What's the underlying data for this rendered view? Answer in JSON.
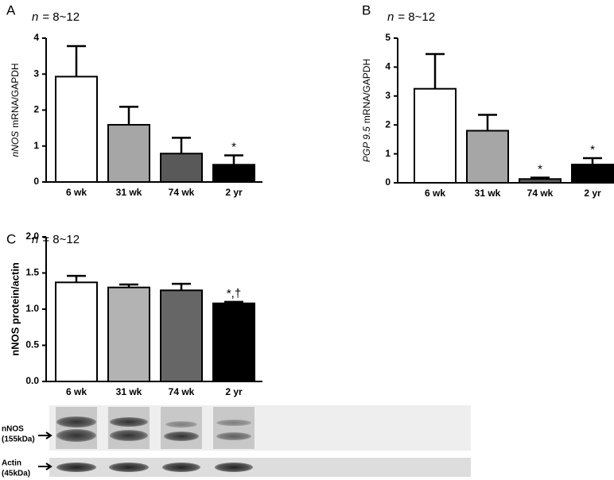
{
  "chart_data": [
    {
      "type": "bar",
      "panel": "A",
      "title_italic": "n",
      "title_rest": "= 8~12",
      "ylabel_italic": "nNOS",
      "ylabel_rest": "mRNA/GAPDH",
      "categories": [
        "6 wk",
        "31 wk",
        "74 wk",
        "2 yr"
      ],
      "values": [
        2.93,
        1.59,
        0.79,
        0.48
      ],
      "errors": [
        0.85,
        0.5,
        0.44,
        0.26
      ],
      "colors": [
        "#ffffff",
        "#a6a6a6",
        "#595959",
        "#000000"
      ],
      "ylim": [
        0,
        4
      ],
      "yticks": [
        0,
        1,
        2,
        3,
        4
      ],
      "annotations": [
        {
          "category": "2 yr",
          "text": "*"
        }
      ]
    },
    {
      "type": "bar",
      "panel": "B",
      "title_italic": "n",
      "title_rest": "= 8~12",
      "ylabel_italic": "PGP 9.5",
      "ylabel_rest": "mRNA/GAPDH",
      "categories": [
        "6 wk",
        "31 wk",
        "74 wk",
        "2 yr"
      ],
      "values": [
        3.25,
        1.8,
        0.13,
        0.63
      ],
      "errors": [
        1.2,
        0.55,
        0.05,
        0.22
      ],
      "colors": [
        "#ffffff",
        "#a6a6a6",
        "#595959",
        "#000000"
      ],
      "ylim": [
        0,
        5
      ],
      "yticks": [
        0,
        1,
        2,
        3,
        4,
        5
      ],
      "annotations": [
        {
          "category": "74 wk",
          "text": "*"
        },
        {
          "category": "2 yr",
          "text": "*"
        }
      ]
    },
    {
      "type": "bar",
      "panel": "C",
      "title_italic": "n",
      "title_rest": "= 8~12",
      "ylabel": "nNOS protein/actin",
      "categories": [
        "6 wk",
        "31 wk",
        "74 wk",
        "2 yr"
      ],
      "values": [
        1.37,
        1.3,
        1.26,
        1.08
      ],
      "errors": [
        0.09,
        0.04,
        0.09,
        0.02
      ],
      "colors": [
        "#ffffff",
        "#b3b3b3",
        "#666666",
        "#000000"
      ],
      "ylim": [
        0,
        2
      ],
      "yticks": [
        {
          "value": 0,
          "label": "0.0"
        },
        0.5,
        {
          "value": 1,
          "label": "1.0"
        },
        1.5,
        {
          "value": 2,
          "label": "2.0"
        }
      ],
      "annotations": [
        {
          "category": "2 yr",
          "text": "*,†"
        }
      ]
    }
  ],
  "blot": {
    "nnos_label": "nNOS",
    "nnos_size": "(155kDa)",
    "actin_label": "Actin",
    "actin_size": "(45kDa)"
  }
}
